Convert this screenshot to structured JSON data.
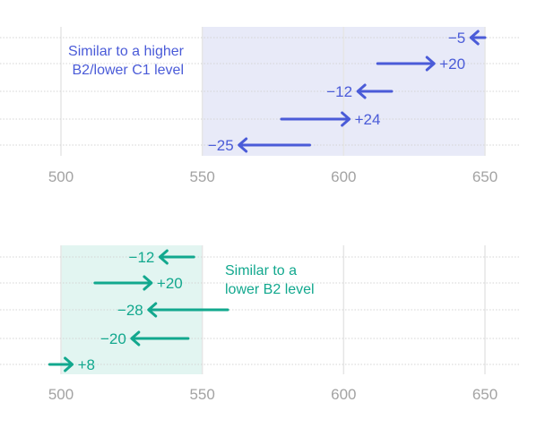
{
  "chart_data": [
    {
      "type": "arrow",
      "title": "",
      "xlabel": "",
      "ylabel": "",
      "xlim": [
        490,
        660
      ],
      "xticks": [
        "500",
        "550",
        "600",
        "650"
      ],
      "grid": true,
      "color": "#4a5bd8",
      "shade_color": "#e8eaf8",
      "shaded_range": [
        550,
        650
      ],
      "annotation": [
        "Similar to a higher",
        "B2/lower C1 level"
      ],
      "arrows": [
        {
          "from": 650,
          "to": 645,
          "label": "−5"
        },
        {
          "from": 612,
          "to": 632,
          "label": "+20"
        },
        {
          "from": 617,
          "to": 605,
          "label": "−12"
        },
        {
          "from": 578,
          "to": 602,
          "label": "+24"
        },
        {
          "from": 588,
          "to": 563,
          "label": "−25"
        }
      ]
    },
    {
      "type": "arrow",
      "title": "",
      "xlabel": "",
      "ylabel": "",
      "xlim": [
        490,
        660
      ],
      "xticks": [
        "500",
        "550",
        "600",
        "650"
      ],
      "grid": true,
      "color": "#12a88e",
      "shade_color": "#e2f5f1",
      "shaded_range": [
        500,
        550
      ],
      "annotation": [
        "Similar to a",
        "lower B2 level"
      ],
      "arrows": [
        {
          "from": 547,
          "to": 535,
          "label": "−12"
        },
        {
          "from": 512,
          "to": 532,
          "label": "+20"
        },
        {
          "from": 559,
          "to": 531,
          "label": "−28"
        },
        {
          "from": 545,
          "to": 525,
          "label": "−20"
        },
        {
          "from": 496,
          "to": 504,
          "label": "+8"
        }
      ]
    }
  ]
}
